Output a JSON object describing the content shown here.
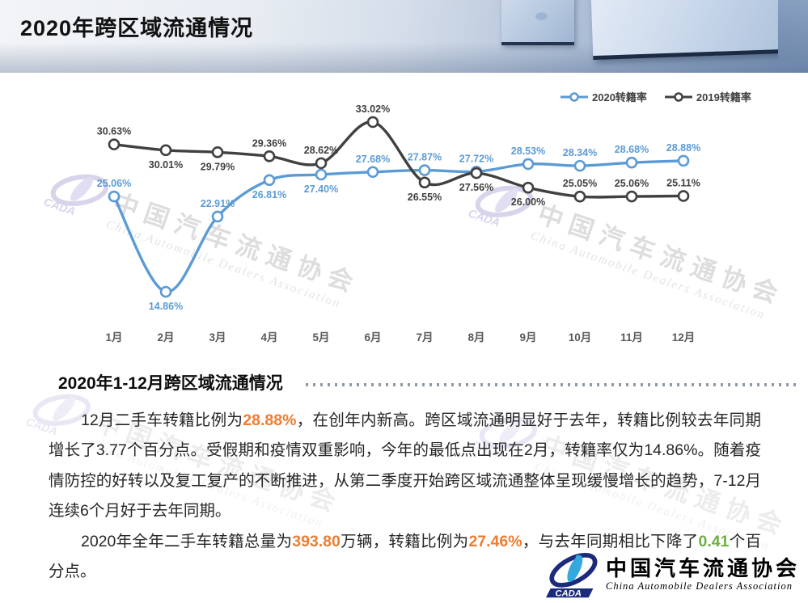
{
  "header": {
    "title": "2020年跨区域流通情况"
  },
  "chart": {
    "legend": [
      {
        "label": "2020转籍率",
        "color": "#5B9BD5"
      },
      {
        "label": "2019转籍率",
        "color": "#404040"
      }
    ],
    "axis_color": "#595959"
  },
  "chart_data": {
    "type": "line",
    "title": "",
    "xlabel": "",
    "ylabel": "",
    "categories": [
      "1月",
      "2月",
      "3月",
      "4月",
      "5月",
      "6月",
      "7月",
      "8月",
      "9月",
      "10月",
      "11月",
      "12月"
    ],
    "series": [
      {
        "name": "2020转籍率",
        "color": "#5B9BD5",
        "values": [
          25.06,
          14.86,
          22.91,
          26.81,
          27.4,
          27.68,
          27.87,
          27.72,
          28.53,
          28.34,
          28.68,
          28.88
        ],
        "label_positions": [
          "above",
          "below",
          "above",
          "below",
          "below",
          "above",
          "above",
          "above",
          "above",
          "above",
          "above",
          "above"
        ]
      },
      {
        "name": "2019转籍率",
        "color": "#404040",
        "values": [
          30.63,
          30.01,
          29.79,
          29.36,
          28.62,
          33.02,
          26.55,
          27.56,
          26.0,
          25.05,
          25.06,
          25.11
        ],
        "label_positions": [
          "above",
          "below",
          "below",
          "above",
          "above",
          "above",
          "below",
          "below",
          "below",
          "above",
          "above",
          "above"
        ]
      }
    ],
    "value_suffix": "%",
    "ylim": [
      12,
      35
    ],
    "grid": false,
    "legend_position": "top-right"
  },
  "content": {
    "section_title": "2020年1-12月跨区域流通情况",
    "paragraphs": [
      {
        "segments": [
          {
            "text": "12月二手车转籍比例为"
          },
          {
            "text": "28.88%",
            "color": "#ED7D31",
            "bold": true
          },
          {
            "text": "，在创年内新高。跨区域流通明显好于去年，转籍比例较去年同期增长了3.77个百分点。受假期和疫情双重影响，今年的最低点出现在2月，转籍率仅为14.86%。随着疫情防控的好转以及复工复产的不断推进，从第二季度开始跨区域流通整体呈现缓慢增长的趋势，7-12月连续6个月好于去年同期。"
          }
        ]
      },
      {
        "segments": [
          {
            "text": "2020年全年二手车转籍总量为"
          },
          {
            "text": "393.80",
            "color": "#ED7D31",
            "bold": true
          },
          {
            "text": "万辆，转籍比例为"
          },
          {
            "text": "27.46%",
            "color": "#ED7D31",
            "bold": true
          },
          {
            "text": "，与去年同期相比下降了"
          },
          {
            "text": "0.41",
            "color": "#70AD47",
            "bold": true
          },
          {
            "text": "个百分点。"
          }
        ]
      }
    ]
  },
  "watermark": {
    "cn": "中国汽车流通协会",
    "en": "China Automobile Dealers Association",
    "acronym": "CADA"
  },
  "logo": {
    "cn": "中国汽车流通协会",
    "en": "China Automobile Dealers Association",
    "acronym": "CADA"
  }
}
